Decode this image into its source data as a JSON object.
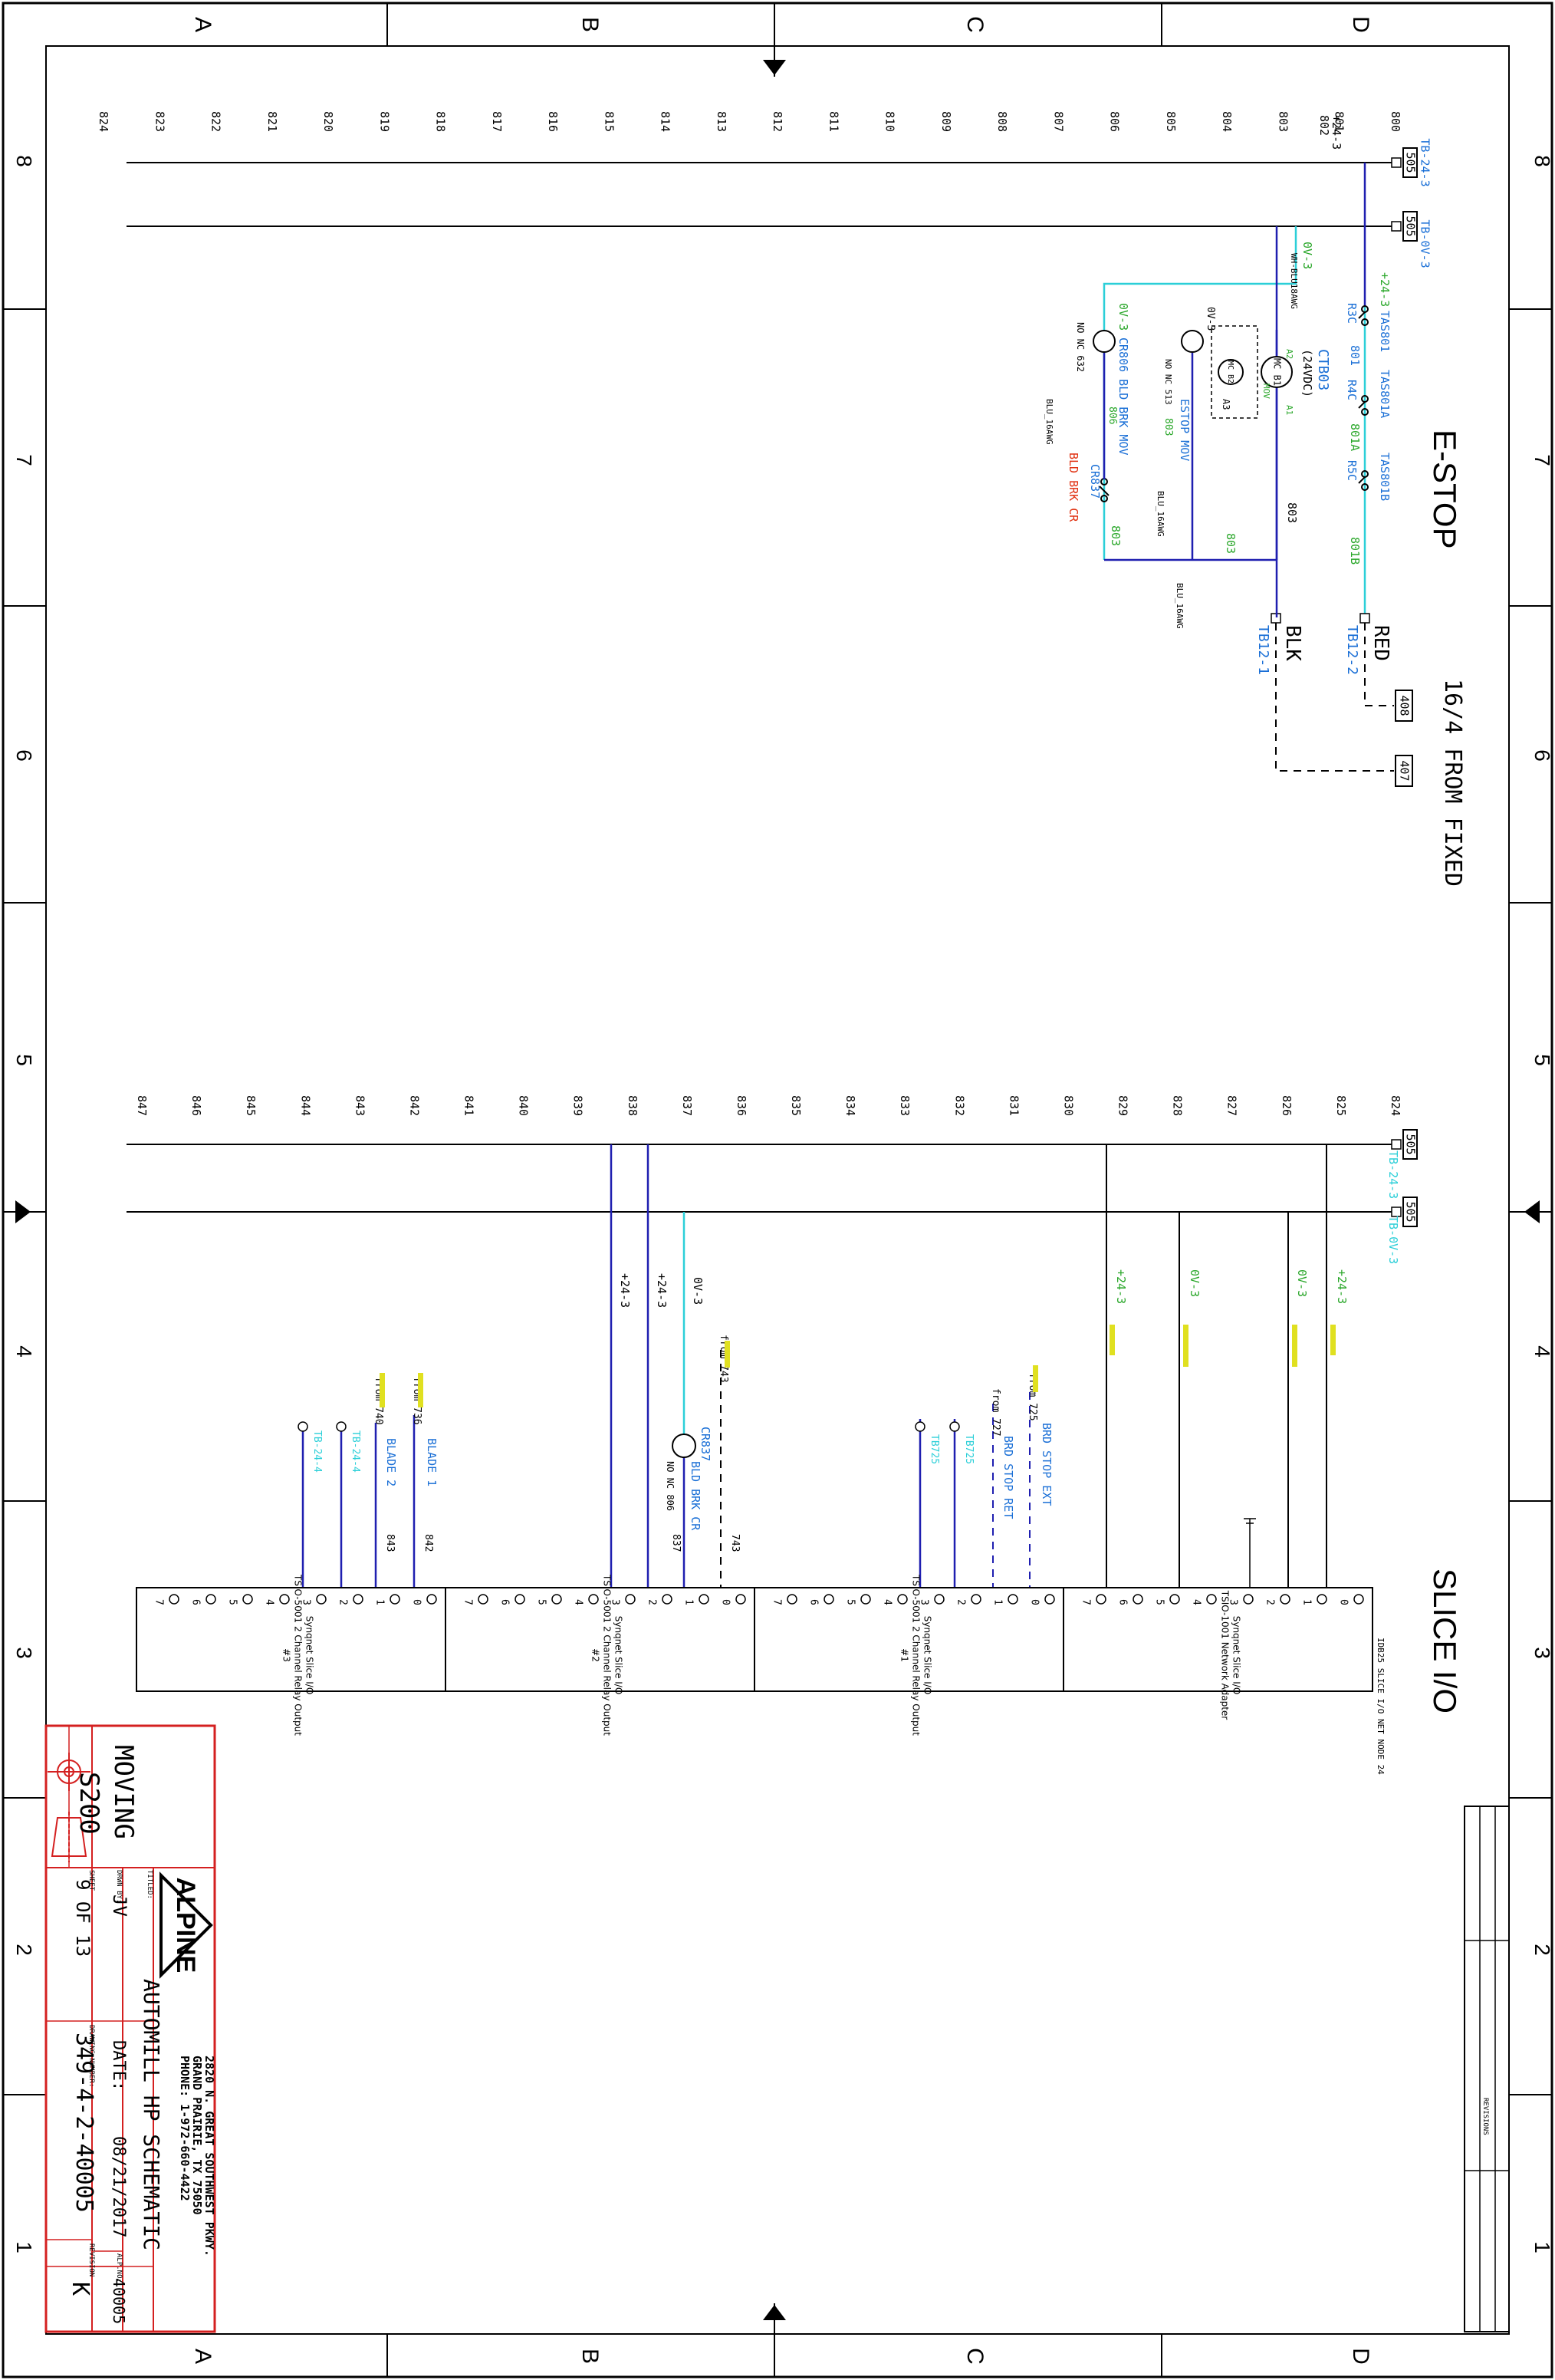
{
  "border": {
    "row_letters": [
      "A",
      "B",
      "C",
      "D"
    ],
    "col_numbers": [
      "8",
      "7",
      "6",
      "5",
      "4",
      "3",
      "2",
      "1"
    ]
  },
  "estop": {
    "title": "E-STOP",
    "rungs": [
      "800",
      "801",
      "+24-3",
      "802",
      "803",
      "804",
      "805",
      "806",
      "807",
      "808",
      "809",
      "810",
      "811",
      "812",
      "813",
      "814",
      "815",
      "816",
      "817",
      "818",
      "819",
      "820",
      "821",
      "822",
      "823",
      "824"
    ],
    "ref_505": "505",
    "tb_24": "TB-24-3",
    "tb_0v": "TB-0V-3",
    "labels": {
      "p24": "+24-3",
      "tas801": "TAS801",
      "r3c": "R3C",
      "w801": "801",
      "tas801a": "TAS801A",
      "r4c": "R4C",
      "w801a": "801A",
      "tas801b": "TAS801B",
      "r5c": "R5C",
      "w801b": "801B",
      "red": "RED",
      "tb12_2": "TB12-2",
      "blk": "BLK",
      "tb12_1": "TB12-1",
      "w803a": "803",
      "w803b": "803",
      "w803c": "803",
      "ov3_a": "0V-3",
      "wh_blu": "WH-BLU18AWG",
      "ctb03": "CTB03",
      "vdc": "(24VDC)",
      "mc_b1": "MC\nB1",
      "mc_b2": "MC\nB2",
      "a1": "A1",
      "a2": "A2",
      "a3": "A3",
      "mov": "MOV",
      "ov3_b": "0V-3",
      "estop_mov": "ESTOP MOV",
      "no_nc_513": "NO NC 513",
      "w803d": "803",
      "ov3_c": "0V-3",
      "cr806": "CR806 BLD BRK MOV",
      "w806": "806",
      "cr837": "CR837",
      "no_nc_632": "NO NC 632",
      "bld_brk_cr": "BLD BRK CR",
      "blu_16": "BLU_16AWG"
    },
    "cable_title": "16/4 FROM FIXED",
    "ref_408": "408",
    "ref_407": "407"
  },
  "slice": {
    "title": "SLICE I/O",
    "rungs": [
      "824",
      "825",
      "826",
      "827",
      "828",
      "829",
      "830",
      "831",
      "832",
      "833",
      "834",
      "835",
      "836",
      "837",
      "838",
      "839",
      "840",
      "841",
      "842",
      "843",
      "844",
      "845",
      "846",
      "847"
    ],
    "ref_505": "505",
    "tb_24": "TB-24-3",
    "tb_0v": "TB-0V-3",
    "wires": {
      "p24_a": "+24-3",
      "ov3_a": "0V-3",
      "ov3_b": "0V-3",
      "p24_b": "+24-3",
      "ov3_c": "0V-3",
      "p24_c": "+24-3",
      "p24_d": "+24-3"
    },
    "signals": {
      "brd_stop_ext": "BRD STOP EXT",
      "brd_stop_ret": "BRD STOP RET",
      "from_725": "from 725",
      "from_727": "from 727",
      "tb725": "TB725",
      "tb725b": "TB725",
      "from_743": "from 743",
      "cr837": "CR837",
      "bld_brk_cr": "BLD BRK CR",
      "no_nc_806": "NO NC 806",
      "w837": "837",
      "w743": "743",
      "blade_1": "BLADE 1",
      "blade_2": "BLADE 2",
      "from_736": "from 736",
      "from_740": "from 740",
      "w842": "842",
      "w843": "843",
      "tb24_4a": "TB-24-4",
      "tb24_4b": "TB-24-4"
    },
    "module_header": "IDB25 SLICE I/O\nNET NODE 24",
    "modules": [
      {
        "title": "Synqnet Slice I/O",
        "model": "TSIO-1001 Network Adapter",
        "num": ""
      },
      {
        "title": "Synqnet Slice I/O",
        "model": "TSIO-5001 2 Channel Relay Output",
        "num": "#1"
      },
      {
        "title": "Synqnet Slice I/O",
        "model": "TSIO-5001 2 Channel Relay Output",
        "num": "#2"
      },
      {
        "title": "Synqnet Slice I/O",
        "model": "TSIO-5001 2 Channel Relay Output",
        "num": "#3"
      }
    ],
    "terminals": [
      "0",
      "1",
      "2",
      "3",
      "4",
      "5",
      "6",
      "7"
    ]
  },
  "revisions": {
    "label": "REVISIONS"
  },
  "title_block": {
    "project": "MOVING",
    "model": "S200",
    "company": "ALPINE",
    "address": [
      "2820 N. GREAT SOUTHWEST PKWY.",
      "GRAND PRAIRIE, TX 75050",
      "PHONE: 1-972-660-4422"
    ],
    "titled_label": "TITLED:",
    "title": "AUTOMILL HP SCHEMATIC",
    "drawn_by_label": "DRWN BY:",
    "drawn_by": "JV",
    "date_label": "DATE:",
    "date": "08/21/2017",
    "alpno_label": "ALP.NO:",
    "alpno": "40005",
    "sheet_label": "SHEET",
    "sheet": "9 OF 13",
    "dwg_label": "DRAWING NUMBER:",
    "dwg": "349-4-2-40005",
    "rev_label": "REVISION",
    "rev": "K"
  },
  "colors": {
    "line": "#1a1a1a",
    "wire_blue": "#1f1fb0",
    "wire_cyan": "#2bcfd8",
    "text_blue": "#1a6fd6",
    "text_green": "#2aa72a",
    "text_yellow": "#e0e020",
    "text_red": "#e03010",
    "title_red": "#d42020"
  }
}
